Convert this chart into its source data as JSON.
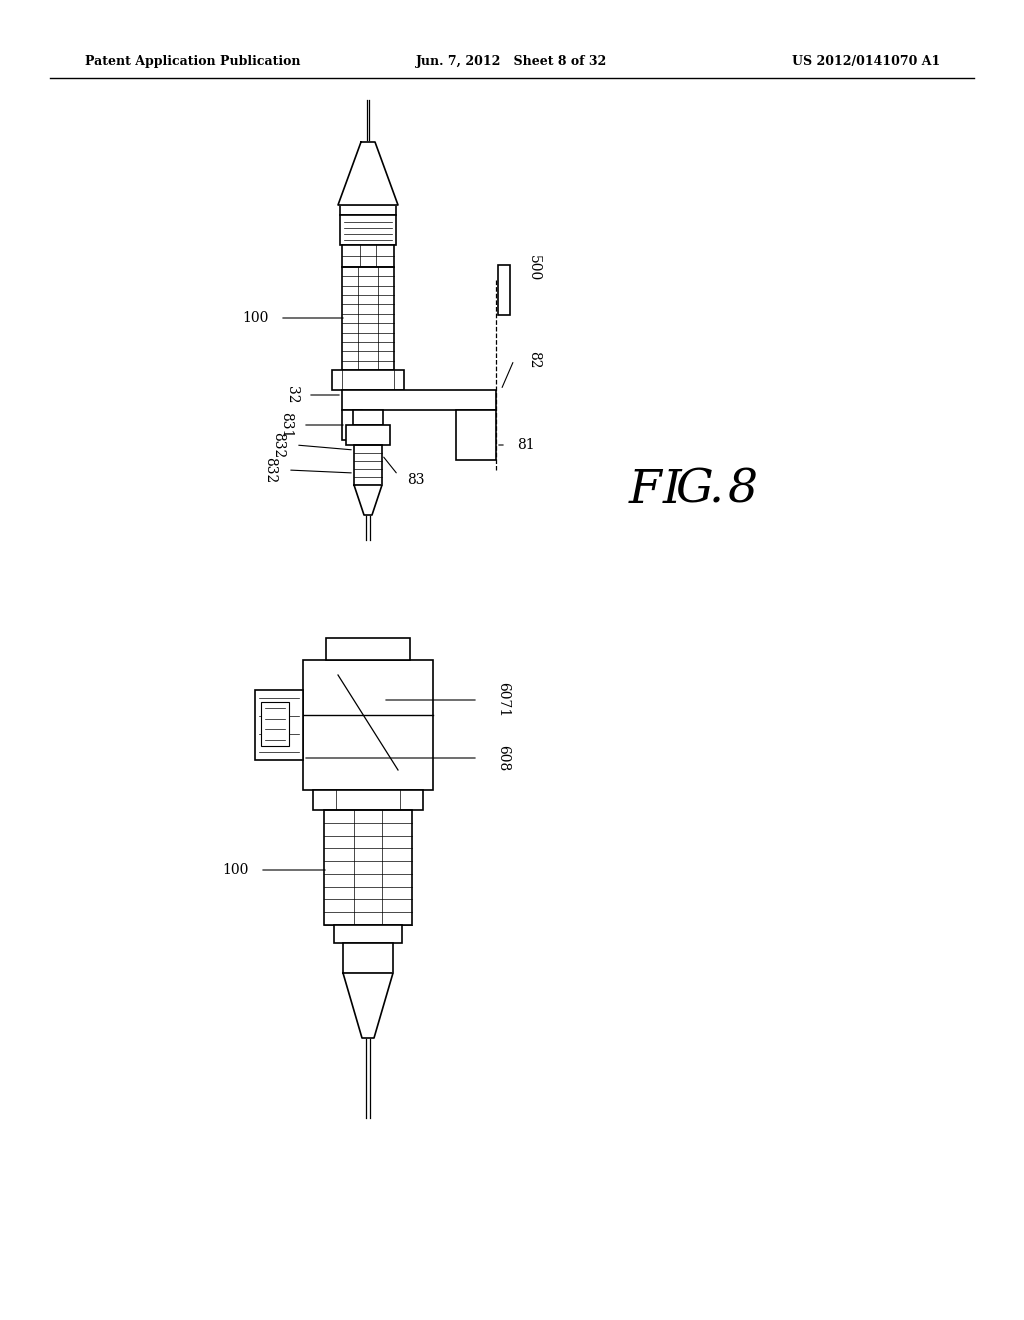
{
  "bg_color": "#ffffff",
  "lc": "#000000",
  "header_left": "Patent Application Publication",
  "header_center": "Jun. 7, 2012   Sheet 8 of 32",
  "header_right": "US 2012/0141070 A1",
  "fig_w": 1024,
  "fig_h": 1320
}
